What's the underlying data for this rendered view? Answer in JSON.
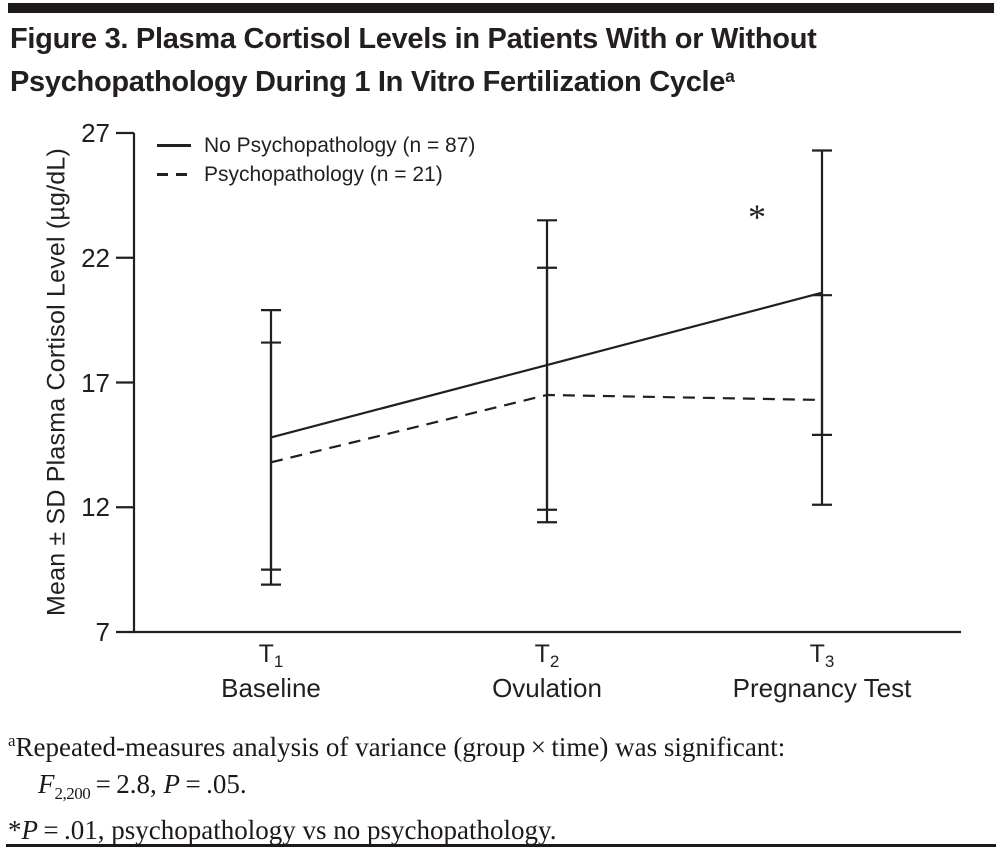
{
  "title": {
    "line1": "Figure 3. Plasma Cortisol Levels in Patients With or Without",
    "line2": "Psychopathology During 1 In Vitro Fertilization Cycle",
    "superscript": "a"
  },
  "colors": {
    "ink": "#231f20",
    "rule": "#1d191a",
    "background": "#ffffff"
  },
  "chart_data": {
    "type": "line",
    "title": "",
    "xlabel": "",
    "ylabel": "Mean ± SD Plasma Cortisol Level (µg/dL)",
    "ylim": [
      7,
      27
    ],
    "yticks": [
      27,
      22,
      17,
      12,
      7
    ],
    "grid": false,
    "legend_position": "top-left",
    "categories": [
      {
        "tick": "T",
        "tick_sub": "1",
        "label": "Baseline"
      },
      {
        "tick": "T",
        "tick_sub": "2",
        "label": "Ovulation"
      },
      {
        "tick": "T",
        "tick_sub": "3",
        "label": "Pregnancy Test"
      }
    ],
    "series": [
      {
        "name": "No Psychopathology (n = 87)",
        "line_style": "solid",
        "means": [
          14.8,
          17.7,
          20.6
        ],
        "sd_upper": [
          19.9,
          23.5,
          26.3
        ],
        "sd_lower": [
          9.5,
          11.9,
          14.9
        ]
      },
      {
        "name": "Psychopathology (n = 21)",
        "line_style": "dashed",
        "means": [
          13.8,
          16.5,
          16.3
        ],
        "sd_upper": [
          18.6,
          21.6,
          20.5
        ],
        "sd_lower": [
          8.9,
          11.4,
          12.1
        ]
      }
    ],
    "annotations": [
      {
        "symbol": "*",
        "category_index": 2
      }
    ]
  },
  "footnotes": {
    "a": {
      "marker": "a",
      "text": "Repeated-measures analysis of variance (group × time) was significant:",
      "stat_f": "F",
      "stat_f_sub": "2,200",
      "stat_f_rest": " = 2.8, ",
      "stat_p": "P",
      "stat_p_rest": " = .05."
    },
    "star": {
      "marker": "*",
      "stat_p": "P",
      "rest": " = .01, psychopathology vs no psychopathology."
    }
  }
}
